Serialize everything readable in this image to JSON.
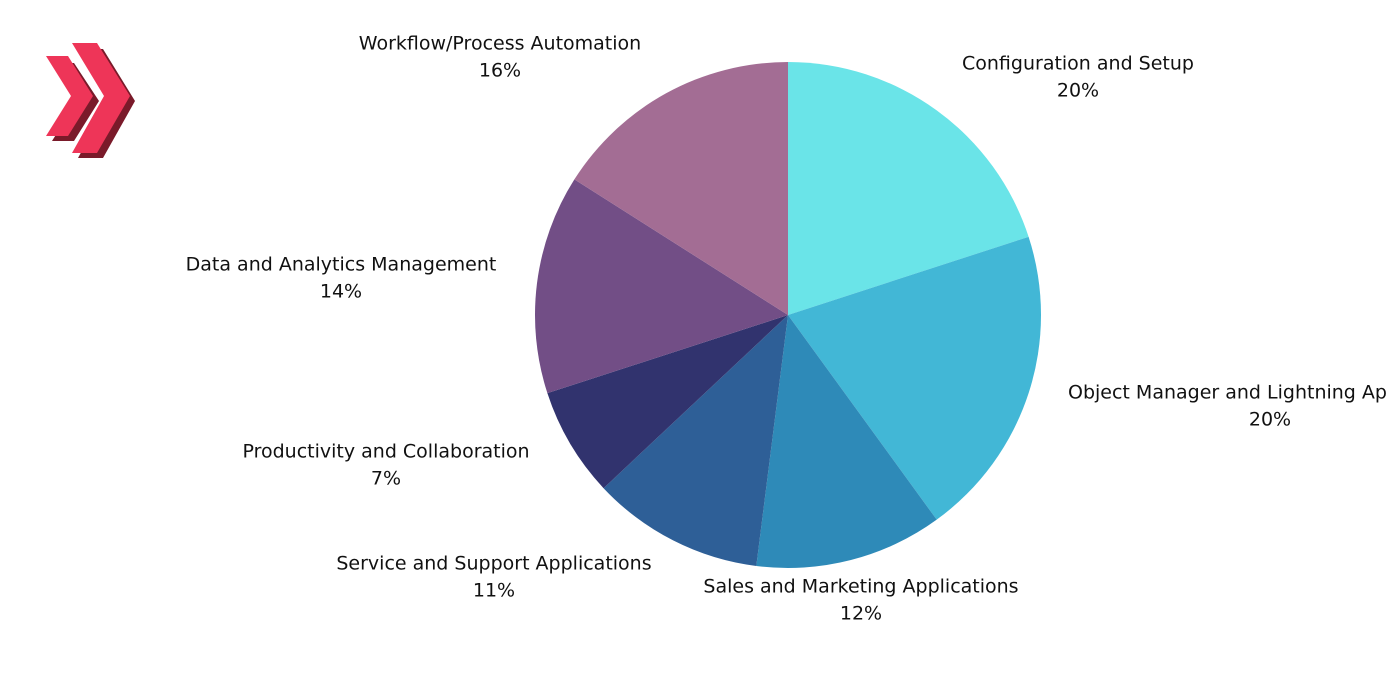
{
  "chart_data": {
    "type": "pie",
    "categories": [
      "Configuration and Setup",
      "Object Manager and Lightning Ap",
      "Sales and Marketing Applications",
      "Service and Support Applications",
      "Productivity and Collaboration",
      "Data and Analytics Management",
      "Workflow/Process Automation"
    ],
    "values": [
      20,
      20,
      12,
      11,
      7,
      14,
      16
    ],
    "value_labels": [
      "20%",
      "20%",
      "12%",
      "11%",
      "7%",
      "14%",
      "16%"
    ],
    "colors": [
      "#6ae4e8",
      "#42b7d6",
      "#2e8ab8",
      "#2e5f97",
      "#31336e",
      "#724e86",
      "#a36d94"
    ]
  }
}
